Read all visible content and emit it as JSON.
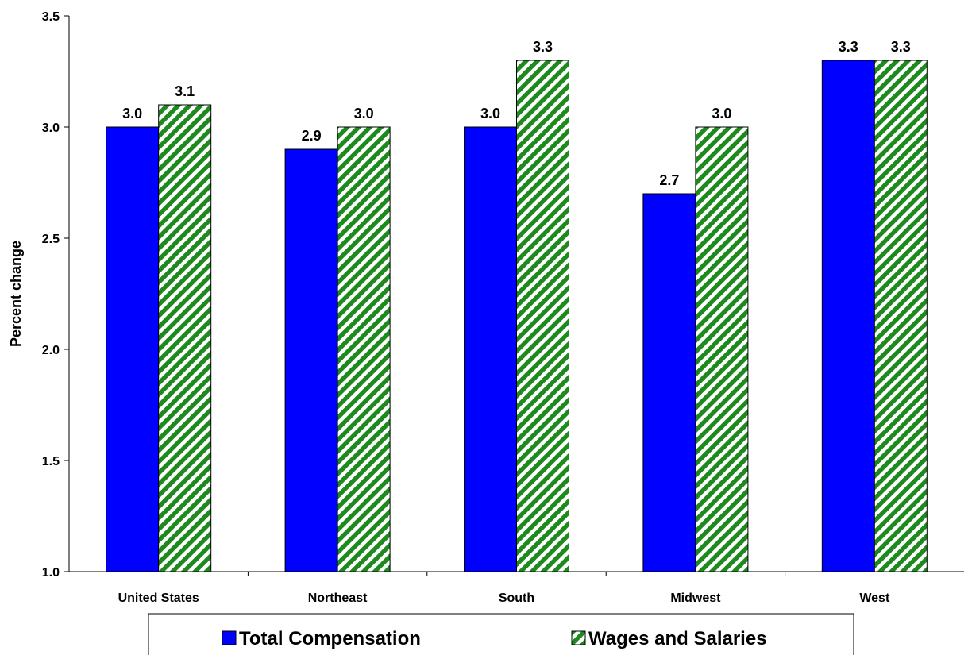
{
  "chart_data": {
    "type": "bar",
    "categories": [
      "United States",
      "Northeast",
      "South",
      "Midwest",
      "West"
    ],
    "series": [
      {
        "name": "Total Compensation",
        "values": [
          3.0,
          2.9,
          3.0,
          2.7,
          3.3
        ],
        "labels": [
          "3.0",
          "2.9",
          "3.0",
          "2.7",
          "3.3"
        ],
        "color": "#0000ff",
        "fill": "solid"
      },
      {
        "name": "Wages and Salaries",
        "values": [
          3.1,
          3.0,
          3.3,
          3.0,
          3.3
        ],
        "labels": [
          "3.1",
          "3.0",
          "3.3",
          "3.0",
          "3.3"
        ],
        "color": "#1e8a1e",
        "fill": "diagonal-stripes"
      }
    ],
    "xlabel": "",
    "ylabel": "Percent change",
    "ylim": [
      1.0,
      3.5
    ],
    "yticks": [
      "1.0",
      "1.5",
      "2.0",
      "2.5",
      "3.0",
      "3.5"
    ],
    "grid": false,
    "legend_position": "bottom"
  }
}
